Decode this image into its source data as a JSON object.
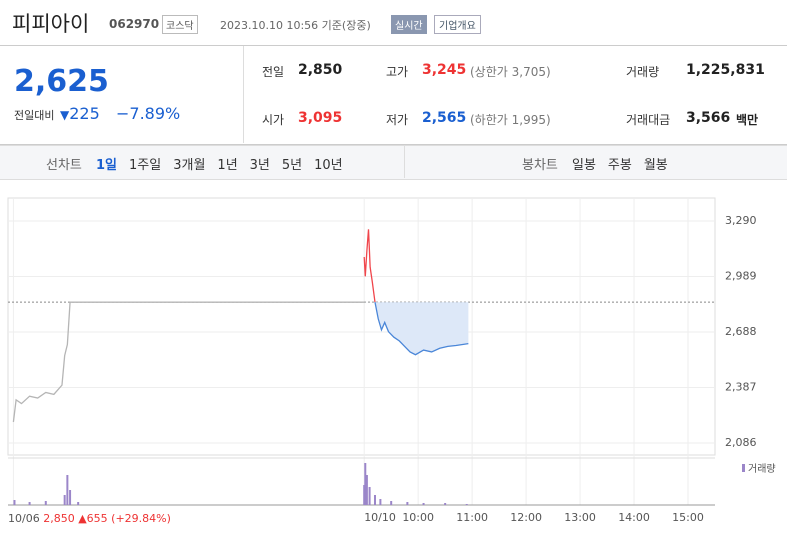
{
  "header": {
    "name": "피피아이",
    "code": "062970",
    "market": "코스닥",
    "time": "2023.10.10 10:56 기준(장중)",
    "realtime": "실시간",
    "overview": "기업개요"
  },
  "quote": {
    "price": "2,625",
    "change_label": "전일대비",
    "change": "225",
    "rate": "−7.89%",
    "cells": [
      [
        "전일",
        "2,850"
      ],
      [
        "고가",
        "3,245",
        "(상한가 3,705)"
      ],
      [
        "거래량",
        "1,225,831"
      ],
      [
        "시가",
        "3,095"
      ],
      [
        "저가",
        "2,565",
        "(하한가 1,995)"
      ],
      [
        "거래대금",
        "3,566",
        "백만"
      ]
    ]
  },
  "tabs": {
    "line_label": "선차트",
    "line": [
      "1일",
      "1주일",
      "3개월",
      "1년",
      "3년",
      "5년",
      "10년"
    ],
    "candle_label": "봉차트",
    "candle": [
      "일봉",
      "주봉",
      "월봉"
    ]
  },
  "footer": {
    "date": "10/06",
    "close": "2,850",
    "change": "▲655",
    "rate": "(+29.84%)"
  },
  "chart_data": {
    "type": "line",
    "xlim": [
      -0.1,
      13
    ],
    "ylim": [
      2021,
      3415
    ],
    "yticks": [
      {
        "value": 3290,
        "label": "3,290"
      },
      {
        "value": 2989,
        "label": "2,989"
      },
      {
        "value": 2688,
        "label": "2,688"
      },
      {
        "value": 2387,
        "label": "2,387"
      },
      {
        "value": 2086,
        "label": "2,086"
      }
    ],
    "xticks": [
      {
        "value": 0,
        "label": "10/06"
      },
      {
        "value": 6.5,
        "label": "10/10"
      },
      {
        "value": 7.5,
        "label": "10:00"
      },
      {
        "value": 8.5,
        "label": "11:00"
      },
      {
        "value": 9.5,
        "label": "12:00"
      },
      {
        "value": 10.5,
        "label": "13:00"
      },
      {
        "value": 11.5,
        "label": "14:00"
      },
      {
        "value": 12.5,
        "label": "15:00"
      }
    ],
    "baseline": 2850,
    "up_color": "#f0454b",
    "series": [
      {
        "color": "#b5b5b5",
        "x": [
          0,
          0.05,
          0.15,
          0.3,
          0.45,
          0.6,
          0.75,
          0.9,
          0.95,
          1.0,
          1.05,
          6.5
        ],
        "values": [
          2200,
          2320,
          2300,
          2340,
          2330,
          2360,
          2350,
          2400,
          2560,
          2620,
          2850,
          2850
        ]
      },
      {
        "color": "#4a86d8",
        "x": [
          6.5,
          6.52,
          6.55,
          6.58,
          6.61,
          6.65,
          6.7,
          6.76,
          6.82,
          6.88,
          6.95,
          7.05,
          7.15,
          7.25,
          7.35,
          7.45,
          7.6,
          7.75,
          7.9,
          8.05,
          8.2,
          8.43
        ],
        "values": [
          3095,
          2990,
          3130,
          3245,
          3040,
          2960,
          2850,
          2760,
          2700,
          2740,
          2690,
          2660,
          2640,
          2610,
          2580,
          2565,
          2590,
          2580,
          2600,
          2610,
          2615,
          2625
        ]
      }
    ],
    "volume": {
      "name": "거래량",
      "color": "#9b86c9",
      "x": [
        0.02,
        0.3,
        0.6,
        0.95,
        1.0,
        1.05,
        1.2,
        6.5,
        6.52,
        6.55,
        6.6,
        6.7,
        6.8,
        7.0,
        7.3,
        7.6,
        8.0,
        8.4
      ],
      "values": [
        5,
        3,
        4,
        10,
        30,
        15,
        3,
        20,
        42,
        30,
        18,
        10,
        6,
        4,
        3,
        2,
        2,
        1
      ]
    }
  }
}
